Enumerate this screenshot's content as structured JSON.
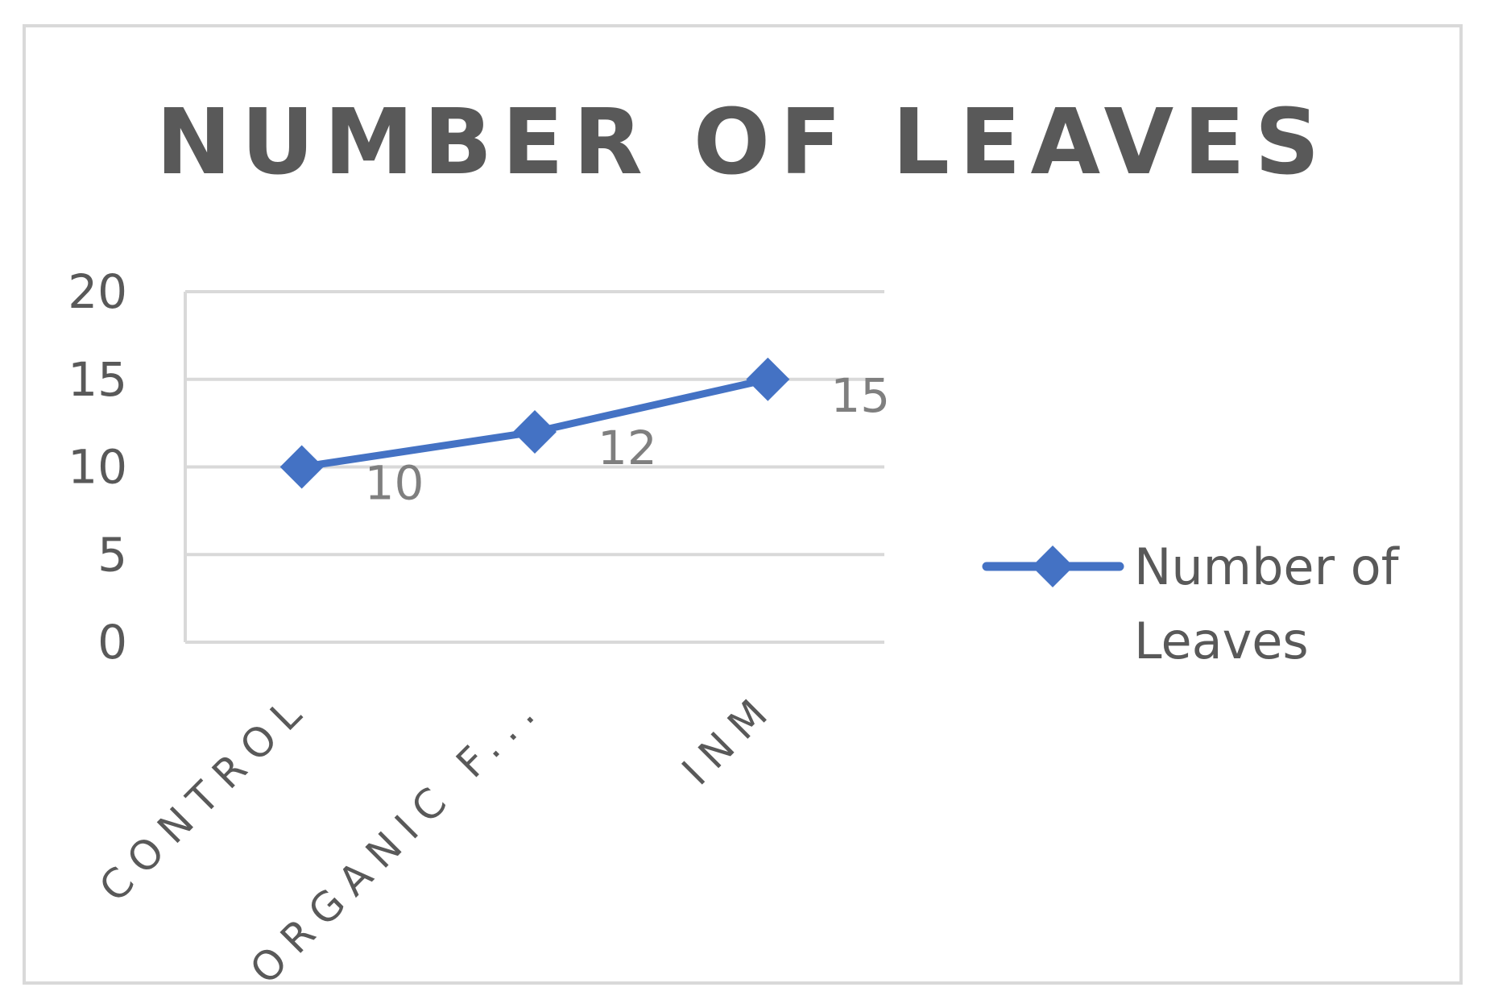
{
  "chart_data": {
    "type": "line",
    "title": "NUMBER OF LEAVES",
    "categories": [
      "CONTROL",
      "ORGANIC F...",
      "INM"
    ],
    "series": [
      {
        "name": "Number of Leaves",
        "values": [
          10,
          12,
          15
        ],
        "color": "#4472c4",
        "marker": "diamond"
      }
    ],
    "data_labels": [
      "10",
      "12",
      "15"
    ],
    "y_ticks": [
      "0",
      "5",
      "10",
      "15",
      "20"
    ],
    "ylim": [
      0,
      20
    ],
    "grid": true,
    "legend_position": "right",
    "legend_lines": [
      "Number of",
      "Leaves"
    ]
  }
}
